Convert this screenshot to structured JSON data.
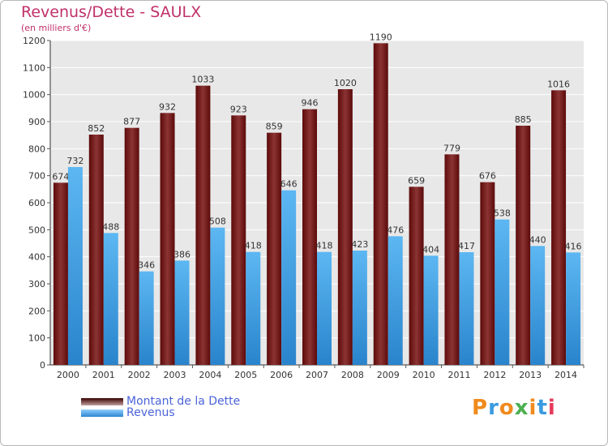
{
  "chart_data": {
    "type": "bar",
    "title": "Revenus/Dette - SAULX",
    "subtitle": "(en milliers d'€)",
    "categories": [
      "2000",
      "2001",
      "2002",
      "2003",
      "2004",
      "2005",
      "2006",
      "2007",
      "2008",
      "2009",
      "2010",
      "2011",
      "2012",
      "2013",
      "2014"
    ],
    "series": [
      {
        "name": "Montant de la Dette",
        "color": "#7a1f1f",
        "values": [
          674,
          852,
          877,
          932,
          1033,
          923,
          859,
          946,
          1020,
          1190,
          659,
          779,
          676,
          885,
          1016
        ]
      },
      {
        "name": "Revenus",
        "color": "#3a9be0",
        "values": [
          732,
          488,
          346,
          386,
          508,
          418,
          646,
          418,
          423,
          476,
          404,
          417,
          538,
          440,
          416
        ]
      }
    ],
    "ylim": [
      0,
      1200
    ],
    "yticks": [
      0,
      100,
      200,
      300,
      400,
      500,
      600,
      700,
      800,
      900,
      1000,
      1100,
      1200
    ],
    "grid": true,
    "legend_position": "bottom-left"
  },
  "logo": {
    "text": "Proxiti"
  }
}
